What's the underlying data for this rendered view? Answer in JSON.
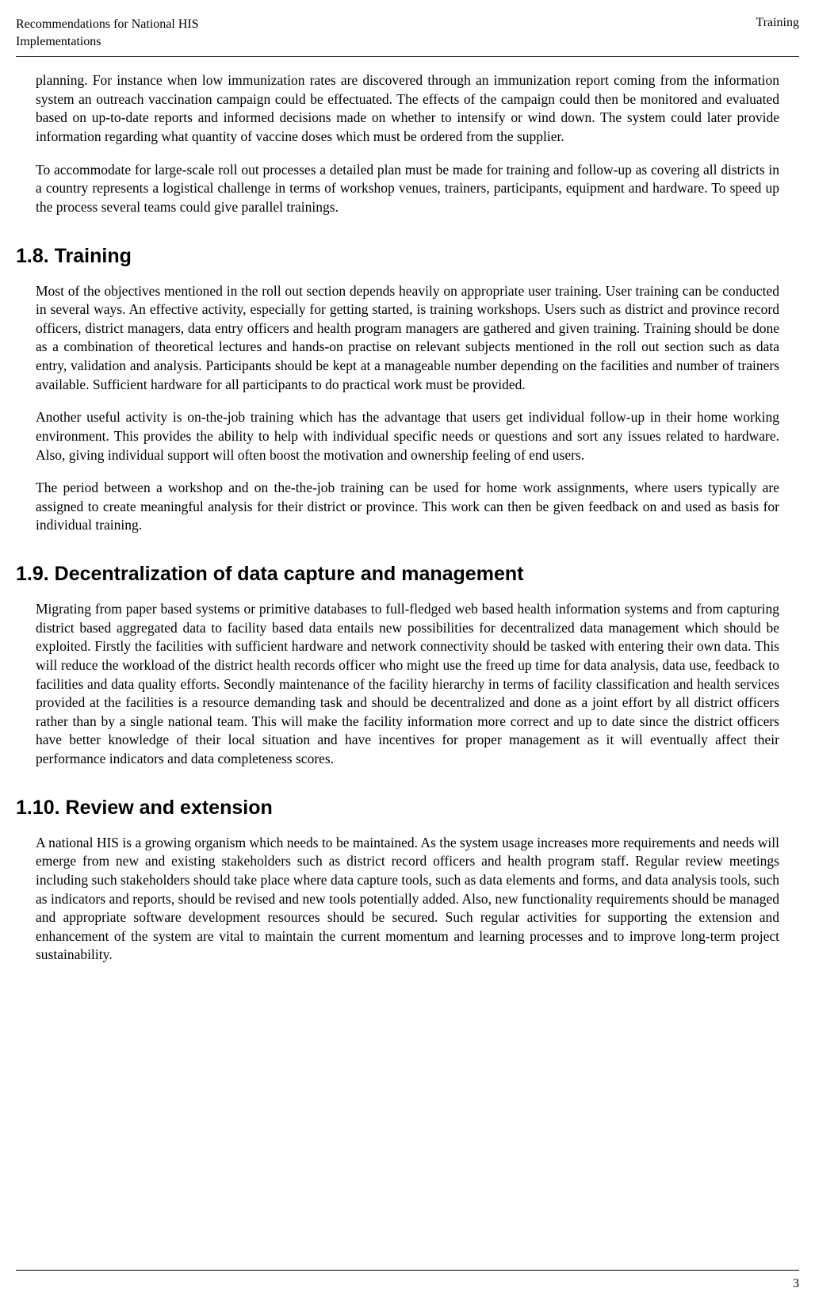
{
  "header": {
    "left_line1": "Recommendations for National HIS",
    "left_line2": "Implementations",
    "right": "Training"
  },
  "intro": {
    "para1": "planning. For instance when low immunization rates are discovered through an immunization report coming from the information system an outreach vaccination campaign could be effectuated. The effects of the campaign could then be monitored and evaluated based on up-to-date reports and informed decisions made on whether to intensify or wind down. The system could later provide information regarding what quantity of vaccine doses which must be ordered from the supplier.",
    "para2": "To accommodate for large-scale roll out processes a detailed plan must be made for training and follow-up as covering all districts in a country represents a logistical challenge in terms of workshop venues, trainers, participants, equipment and hardware. To speed up the process several teams could give parallel trainings."
  },
  "section_1_8": {
    "heading": "1.8. Training",
    "para1": "Most of the objectives mentioned in the roll out section depends heavily on appropriate user training. User training can be conducted in several ways. An effective activity, especially for getting started, is training workshops. Users such as district and province record officers, district managers, data entry officers and health program managers are gathered and given training. Training should be done as a combination of theoretical lectures and hands-on practise on relevant subjects mentioned in the roll out section such as data entry, validation and analysis. Participants should be kept at a manageable number depending on the facilities and number of trainers available. Sufficient hardware for all participants to do practical work must be provided.",
    "para2": "Another useful activity is on-the-job training which has the advantage that users get individual follow-up in their home working environment. This provides the ability to help with individual specific needs or questions and sort any issues related to hardware. Also, giving individual support will often boost the motivation and ownership feeling of end users.",
    "para3": "The period between a workshop and on the-the-job training can be used for home work assignments, where users typically are assigned to create meaningful analysis for their district or province. This work can then be given feedback on and used as basis for individual training."
  },
  "section_1_9": {
    "heading": "1.9. Decentralization of data capture and management",
    "para1": "Migrating from paper based systems or primitive databases to full-fledged web based health information systems and from capturing district based aggregated data to facility based data entails new possibilities for decentralized data management which should be exploited. Firstly the facilities with sufficient hardware and network connectivity should be tasked with entering their own data. This will reduce the workload of the district health records officer who might use the freed up time for data analysis, data use, feedback to facilities and data quality efforts. Secondly maintenance of the facility hierarchy in terms of facility classification and health services provided at the facilities is a resource demanding task and should be decentralized and done as a joint effort by all district officers rather than by a single national team. This will make the facility information more correct and up to date since the district officers have better knowledge of their local situation and have incentives for proper management as it will eventually affect their performance indicators and data completeness scores."
  },
  "section_1_10": {
    "heading": "1.10. Review and extension",
    "para1": "A national HIS is a growing organism which needs to be maintained. As the system usage increases more requirements and needs will emerge from new and existing stakeholders such as district record officers and health program staff. Regular review meetings including such stakeholders should take place where data capture tools, such as data elements and forms, and data analysis tools, such as indicators and reports, should be revised and new tools potentially added. Also, new functionality requirements should be managed and appropriate software development resources should be secured. Such regular activities for supporting the extension and enhancement of the system are vital to maintain the current momentum and learning processes and to improve long-term project sustainability."
  },
  "footer": {
    "page_number": "3"
  }
}
